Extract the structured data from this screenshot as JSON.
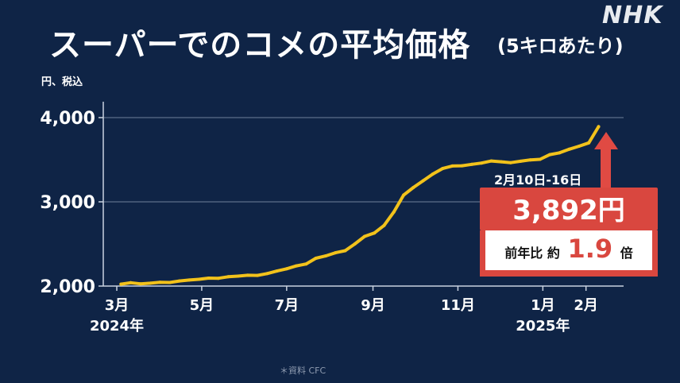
{
  "header": {
    "title": "スーパーでのコメの平均価格",
    "subtitle": "(5キロあたり)",
    "logo": "NHK",
    "unit": "円、税込"
  },
  "callout": {
    "period": "2月10日-16日",
    "price": "3,892円",
    "ratio_prefix": "前年比 約",
    "ratio_value": "1.9",
    "ratio_suffix": "倍"
  },
  "footer": {
    "source": "＊資料 CFC"
  },
  "colors": {
    "background": "#0f2446",
    "line": "#f2c21b",
    "callout": "#d9473f",
    "arrow": "#e04a43"
  },
  "chart_data": {
    "type": "line",
    "title": "スーパーでのコメの平均価格",
    "ylabel": "円、税込",
    "ylim": [
      2000,
      4000
    ],
    "xlim": [
      "2024-02-26",
      "2025-02-28"
    ],
    "yticks": [
      2000,
      3000,
      4000
    ],
    "ytick_labels": [
      "2,000",
      "3,000",
      "4,000"
    ],
    "xticks": [
      {
        "date": "2024-03-01",
        "label": "3月"
      },
      {
        "date": "2024-05-01",
        "label": "5月"
      },
      {
        "date": "2024-07-01",
        "label": "7月"
      },
      {
        "date": "2024-09-01",
        "label": "9月"
      },
      {
        "date": "2024-11-01",
        "label": "11月"
      },
      {
        "date": "2025-01-01",
        "label": "1月"
      },
      {
        "date": "2025-02-01",
        "label": "2月"
      }
    ],
    "year_labels": [
      {
        "date": "2024-03-01",
        "label": "2024年"
      },
      {
        "date": "2025-01-01",
        "label": "2025年"
      }
    ],
    "grid": true,
    "series": [
      {
        "x": [
          "2024-03-04",
          "2024-03-11",
          "2024-03-18",
          "2024-03-25",
          "2024-04-01",
          "2024-04-08",
          "2024-04-15",
          "2024-04-22",
          "2024-04-29",
          "2024-05-06",
          "2024-05-13",
          "2024-05-20",
          "2024-05-27",
          "2024-06-03",
          "2024-06-10",
          "2024-06-17",
          "2024-06-24",
          "2024-07-01",
          "2024-07-08",
          "2024-07-15",
          "2024-07-22",
          "2024-07-29",
          "2024-08-05",
          "2024-08-12",
          "2024-08-19",
          "2024-08-26",
          "2024-09-02",
          "2024-09-09",
          "2024-09-16",
          "2024-09-23",
          "2024-09-30",
          "2024-10-07",
          "2024-10-14",
          "2024-10-21",
          "2024-10-28",
          "2024-11-04",
          "2024-11-11",
          "2024-11-18",
          "2024-11-25",
          "2024-12-02",
          "2024-12-09",
          "2024-12-16",
          "2024-12-23",
          "2024-12-30",
          "2025-01-06",
          "2025-01-13",
          "2025-01-20",
          "2025-01-27",
          "2025-02-03",
          "2025-02-10"
        ],
        "values": [
          2023,
          2040,
          2026,
          2034,
          2045,
          2042,
          2060,
          2072,
          2080,
          2094,
          2092,
          2110,
          2118,
          2128,
          2126,
          2148,
          2178,
          2205,
          2240,
          2262,
          2330,
          2358,
          2395,
          2420,
          2500,
          2590,
          2630,
          2720,
          2880,
          3080,
          3170,
          3250,
          3330,
          3395,
          3425,
          3428,
          3445,
          3460,
          3485,
          3475,
          3465,
          3482,
          3498,
          3505,
          3560,
          3582,
          3625,
          3660,
          3700,
          3892
        ]
      }
    ]
  }
}
